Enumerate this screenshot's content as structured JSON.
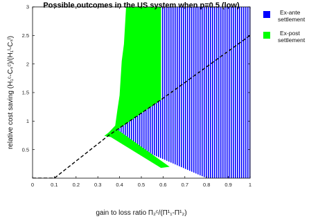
{
  "chart_data": {
    "type": "area",
    "title": "Possible outcomes in the US system when p=0.5 (low)",
    "xlabel": "gain to loss ratio Π₂ᶜ/(Π¹₁-Π¹₂)",
    "ylabel": "relative cost saving (H₁ᶜ-Cₛᶜ)/(H₁ᴵ-Cₛᴵ)",
    "xlim": [
      0,
      1
    ],
    "ylim": [
      0,
      3
    ],
    "xticks": [
      "0",
      "0.1",
      "0.2",
      "0.3",
      "0.4",
      "0.5",
      "0.6",
      "0.7",
      "0.8",
      "0.9",
      "1"
    ],
    "yticks": [
      "0.5",
      "1",
      "1.5",
      "2",
      "2.5",
      "3"
    ],
    "grid": false,
    "legend_position": "right, outside",
    "regions": [
      {
        "name": "Ex-ante settlement",
        "color": "#0000ff",
        "pattern": "vertical-stripes",
        "polygon": [
          [
            0.35,
            0.75
          ],
          [
            0.59,
            1.37
          ],
          [
            0.59,
            3.0
          ],
          [
            1.0,
            3.0
          ],
          [
            1.0,
            0.0
          ],
          [
            0.8,
            0.0
          ]
        ]
      },
      {
        "name": "Ex-post settlement",
        "color": "#00ff00",
        "pattern": "solid",
        "polygon": [
          [
            0.33,
            0.74
          ],
          [
            0.35,
            0.8
          ],
          [
            0.38,
            0.92
          ],
          [
            0.39,
            1.2
          ],
          [
            0.4,
            1.45
          ],
          [
            0.41,
            2.05
          ],
          [
            0.42,
            2.35
          ],
          [
            0.43,
            3.0
          ],
          [
            0.59,
            3.0
          ],
          [
            0.59,
            1.37
          ],
          [
            0.39,
            0.85
          ],
          [
            0.63,
            0.2
          ],
          [
            0.59,
            0.18
          ],
          [
            0.36,
            0.72
          ]
        ]
      }
    ],
    "dashed_line": {
      "style": "black dashed",
      "points": [
        [
          0.0,
          0.0
        ],
        [
          0.1,
          0.0
        ],
        [
          0.35,
          0.75
        ],
        [
          0.6,
          1.4
        ],
        [
          1.0,
          2.5
        ]
      ]
    },
    "legend": [
      {
        "label": "Ex-ante settlement",
        "color": "#0000ff"
      },
      {
        "label": "Ex-post settlement",
        "color": "#00ff00"
      }
    ]
  }
}
